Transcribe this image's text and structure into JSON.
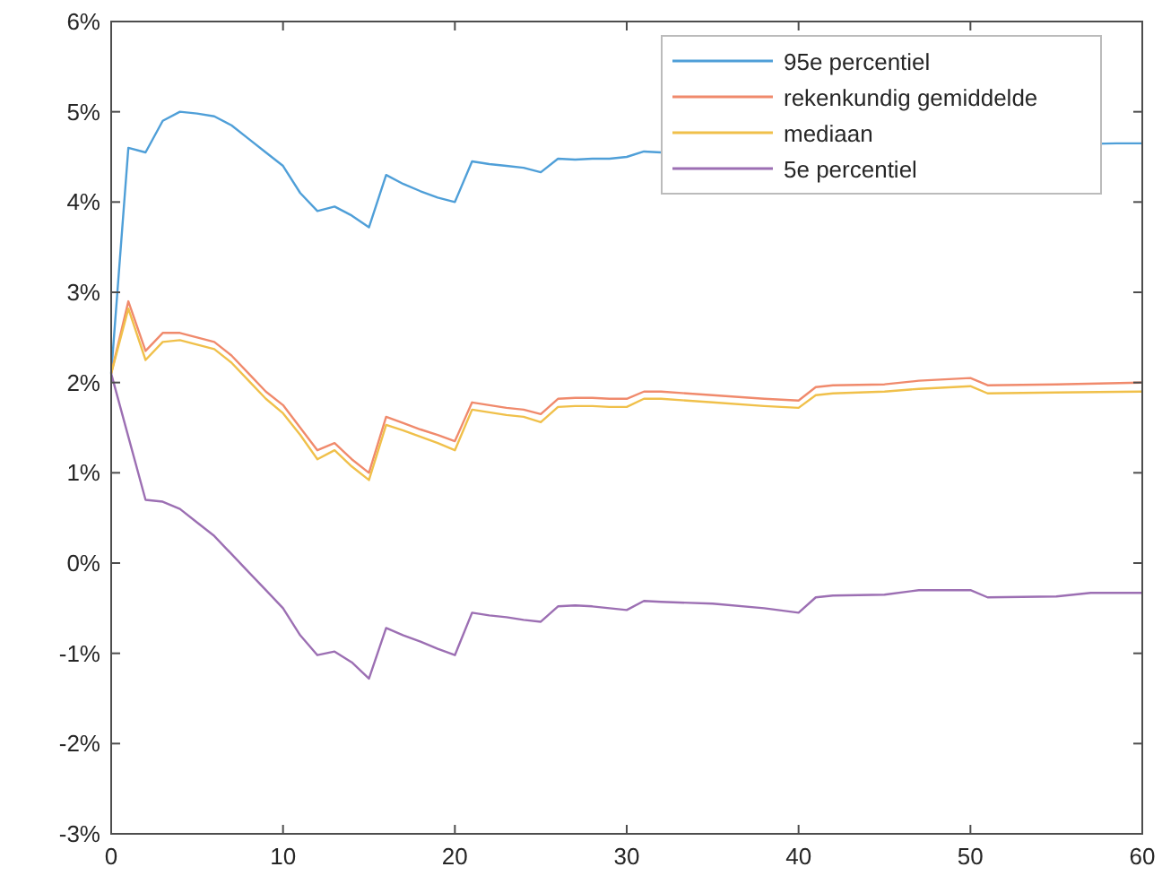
{
  "chart_data": {
    "type": "line",
    "xlim": [
      0,
      60
    ],
    "ylim": [
      -3,
      6
    ],
    "xticks": [
      0,
      10,
      20,
      30,
      40,
      50,
      60
    ],
    "yticks": [
      {
        "value": -3,
        "label": "-3%"
      },
      {
        "value": -2,
        "label": "-2%"
      },
      {
        "value": -1,
        "label": "-1%"
      },
      {
        "value": 0,
        "label": "0%"
      },
      {
        "value": 1,
        "label": "1%"
      },
      {
        "value": 2,
        "label": "2%"
      },
      {
        "value": 3,
        "label": "3%"
      },
      {
        "value": 4,
        "label": "4%"
      },
      {
        "value": 5,
        "label": "5%"
      },
      {
        "value": 6,
        "label": "6%"
      }
    ],
    "legend": "top right",
    "grid": false,
    "marker": "none",
    "line_style": "solid",
    "series": [
      {
        "name": "95e percentiel",
        "color": "#4f9fd8",
        "x": [
          0,
          1,
          2,
          3,
          4,
          5,
          6,
          7,
          8,
          9,
          10,
          11,
          12,
          13,
          14,
          15,
          16,
          17,
          18,
          19,
          20,
          21,
          22,
          23,
          24,
          25,
          26,
          27,
          28,
          29,
          30,
          31,
          32,
          58.5,
          60
        ],
        "values": [
          2.1,
          4.6,
          4.55,
          4.9,
          5.0,
          4.98,
          4.95,
          4.85,
          4.7,
          4.55,
          4.4,
          4.1,
          3.9,
          3.95,
          3.85,
          3.72,
          4.3,
          4.2,
          4.12,
          4.05,
          4.0,
          4.45,
          4.42,
          4.4,
          4.38,
          4.33,
          4.48,
          4.47,
          4.48,
          4.48,
          4.5,
          4.56,
          4.55,
          4.65,
          4.65
        ]
      },
      {
        "name": "rekenkundig gemiddelde",
        "color": "#f08a6c",
        "x": [
          0,
          1,
          2,
          3,
          4,
          5,
          6,
          7,
          8,
          9,
          10,
          11,
          12,
          13,
          14,
          15,
          16,
          17,
          18,
          19,
          20,
          21,
          22,
          23,
          24,
          25,
          26,
          27,
          28,
          29,
          30,
          31,
          32,
          35,
          38,
          40,
          41,
          42,
          45,
          47,
          50,
          51,
          55,
          60
        ],
        "values": [
          2.1,
          2.9,
          2.35,
          2.55,
          2.55,
          2.5,
          2.45,
          2.3,
          2.1,
          1.9,
          1.75,
          1.5,
          1.25,
          1.33,
          1.15,
          1.0,
          1.62,
          1.55,
          1.48,
          1.42,
          1.35,
          1.78,
          1.75,
          1.72,
          1.7,
          1.65,
          1.82,
          1.83,
          1.83,
          1.82,
          1.82,
          1.9,
          1.9,
          1.86,
          1.82,
          1.8,
          1.95,
          1.97,
          1.98,
          2.02,
          2.05,
          1.97,
          1.98,
          2.0
        ]
      },
      {
        "name": "mediaan",
        "color": "#f0c04a",
        "x": [
          0,
          1,
          2,
          3,
          4,
          5,
          6,
          7,
          8,
          9,
          10,
          11,
          12,
          13,
          14,
          15,
          16,
          17,
          18,
          19,
          20,
          21,
          22,
          23,
          24,
          25,
          26,
          27,
          28,
          29,
          30,
          31,
          32,
          35,
          38,
          40,
          41,
          42,
          45,
          47,
          50,
          51,
          55,
          60
        ],
        "values": [
          2.1,
          2.82,
          2.25,
          2.45,
          2.47,
          2.42,
          2.37,
          2.22,
          2.02,
          1.82,
          1.66,
          1.42,
          1.15,
          1.25,
          1.07,
          0.92,
          1.53,
          1.47,
          1.4,
          1.33,
          1.25,
          1.7,
          1.67,
          1.64,
          1.62,
          1.56,
          1.73,
          1.74,
          1.74,
          1.73,
          1.73,
          1.82,
          1.82,
          1.78,
          1.74,
          1.72,
          1.86,
          1.88,
          1.9,
          1.93,
          1.96,
          1.88,
          1.89,
          1.9
        ]
      },
      {
        "name": "5e percentiel",
        "color": "#9c6fb3",
        "x": [
          0,
          1,
          2,
          3,
          4,
          5,
          6,
          7,
          8,
          9,
          10,
          11,
          12,
          13,
          14,
          15,
          16,
          17,
          18,
          19,
          20,
          21,
          22,
          23,
          24,
          25,
          26,
          27,
          28,
          29,
          30,
          31,
          32,
          35,
          38,
          40,
          41,
          42,
          45,
          47,
          50,
          51,
          55,
          57,
          60
        ],
        "values": [
          2.1,
          1.4,
          0.7,
          0.68,
          0.6,
          0.45,
          0.3,
          0.1,
          -0.1,
          -0.3,
          -0.5,
          -0.8,
          -1.02,
          -0.98,
          -1.1,
          -1.28,
          -0.72,
          -0.8,
          -0.87,
          -0.95,
          -1.02,
          -0.55,
          -0.58,
          -0.6,
          -0.63,
          -0.65,
          -0.48,
          -0.47,
          -0.48,
          -0.5,
          -0.52,
          -0.42,
          -0.43,
          -0.45,
          -0.5,
          -0.55,
          -0.38,
          -0.36,
          -0.35,
          -0.3,
          -0.3,
          -0.38,
          -0.37,
          -0.33,
          -0.33
        ]
      }
    ]
  }
}
